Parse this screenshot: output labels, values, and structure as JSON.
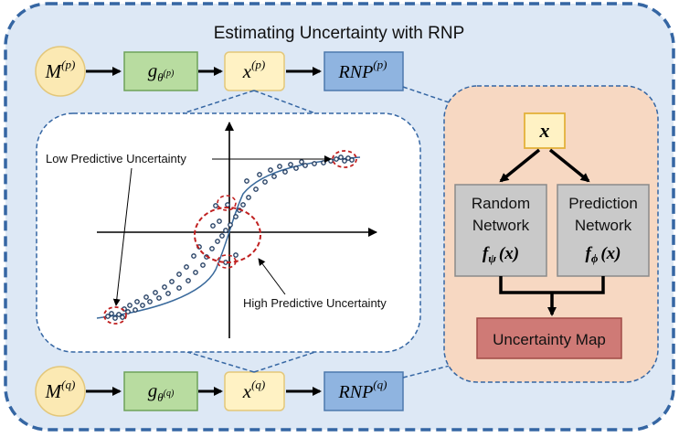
{
  "title": "Estimating Uncertainty with RNP",
  "colors": {
    "outer_bg": "#dde8f5",
    "outer_border": "#3566a3",
    "model_node": "#fbe9b3",
    "generator": "#b8dca0",
    "sample": "#fff2c4",
    "rnp": "#8fb4e0",
    "rnp_panel": "#f7d8c2",
    "network_box": "#c9c9c9",
    "uncertainty_map": "#cf7a76",
    "curve": "#3a6a9c",
    "highlight": "#c02020"
  },
  "top_row": {
    "model": {
      "base": "M",
      "sup": "(p)"
    },
    "generator": {
      "base": "g",
      "sub": "θ",
      "subsup": "(p)"
    },
    "sample": {
      "base": "x",
      "sup": "(p)"
    },
    "rnp": {
      "base": "RNP",
      "sup": "(p)"
    }
  },
  "bottom_row": {
    "model": {
      "base": "M",
      "sup": "(q)"
    },
    "generator": {
      "base": "g",
      "sub": "θ",
      "subsup": "(q)"
    },
    "sample": {
      "base": "x",
      "sup": "(q)"
    },
    "rnp": {
      "base": "RNP",
      "sup": "(q)"
    }
  },
  "plot": {
    "label_low": "Low Predictive Uncertainty",
    "label_high": "High Predictive Uncertainty"
  },
  "rnp_detail": {
    "input": "x",
    "random_network": {
      "line1": "Random",
      "line2": "Network",
      "fn": "f",
      "sub": "ψ",
      "arg": "(x)"
    },
    "prediction_network": {
      "line1": "Prediction",
      "line2": "Network",
      "fn": "f",
      "sub": "ϕ",
      "arg": "(x)"
    },
    "output": "Uncertainty Map"
  }
}
